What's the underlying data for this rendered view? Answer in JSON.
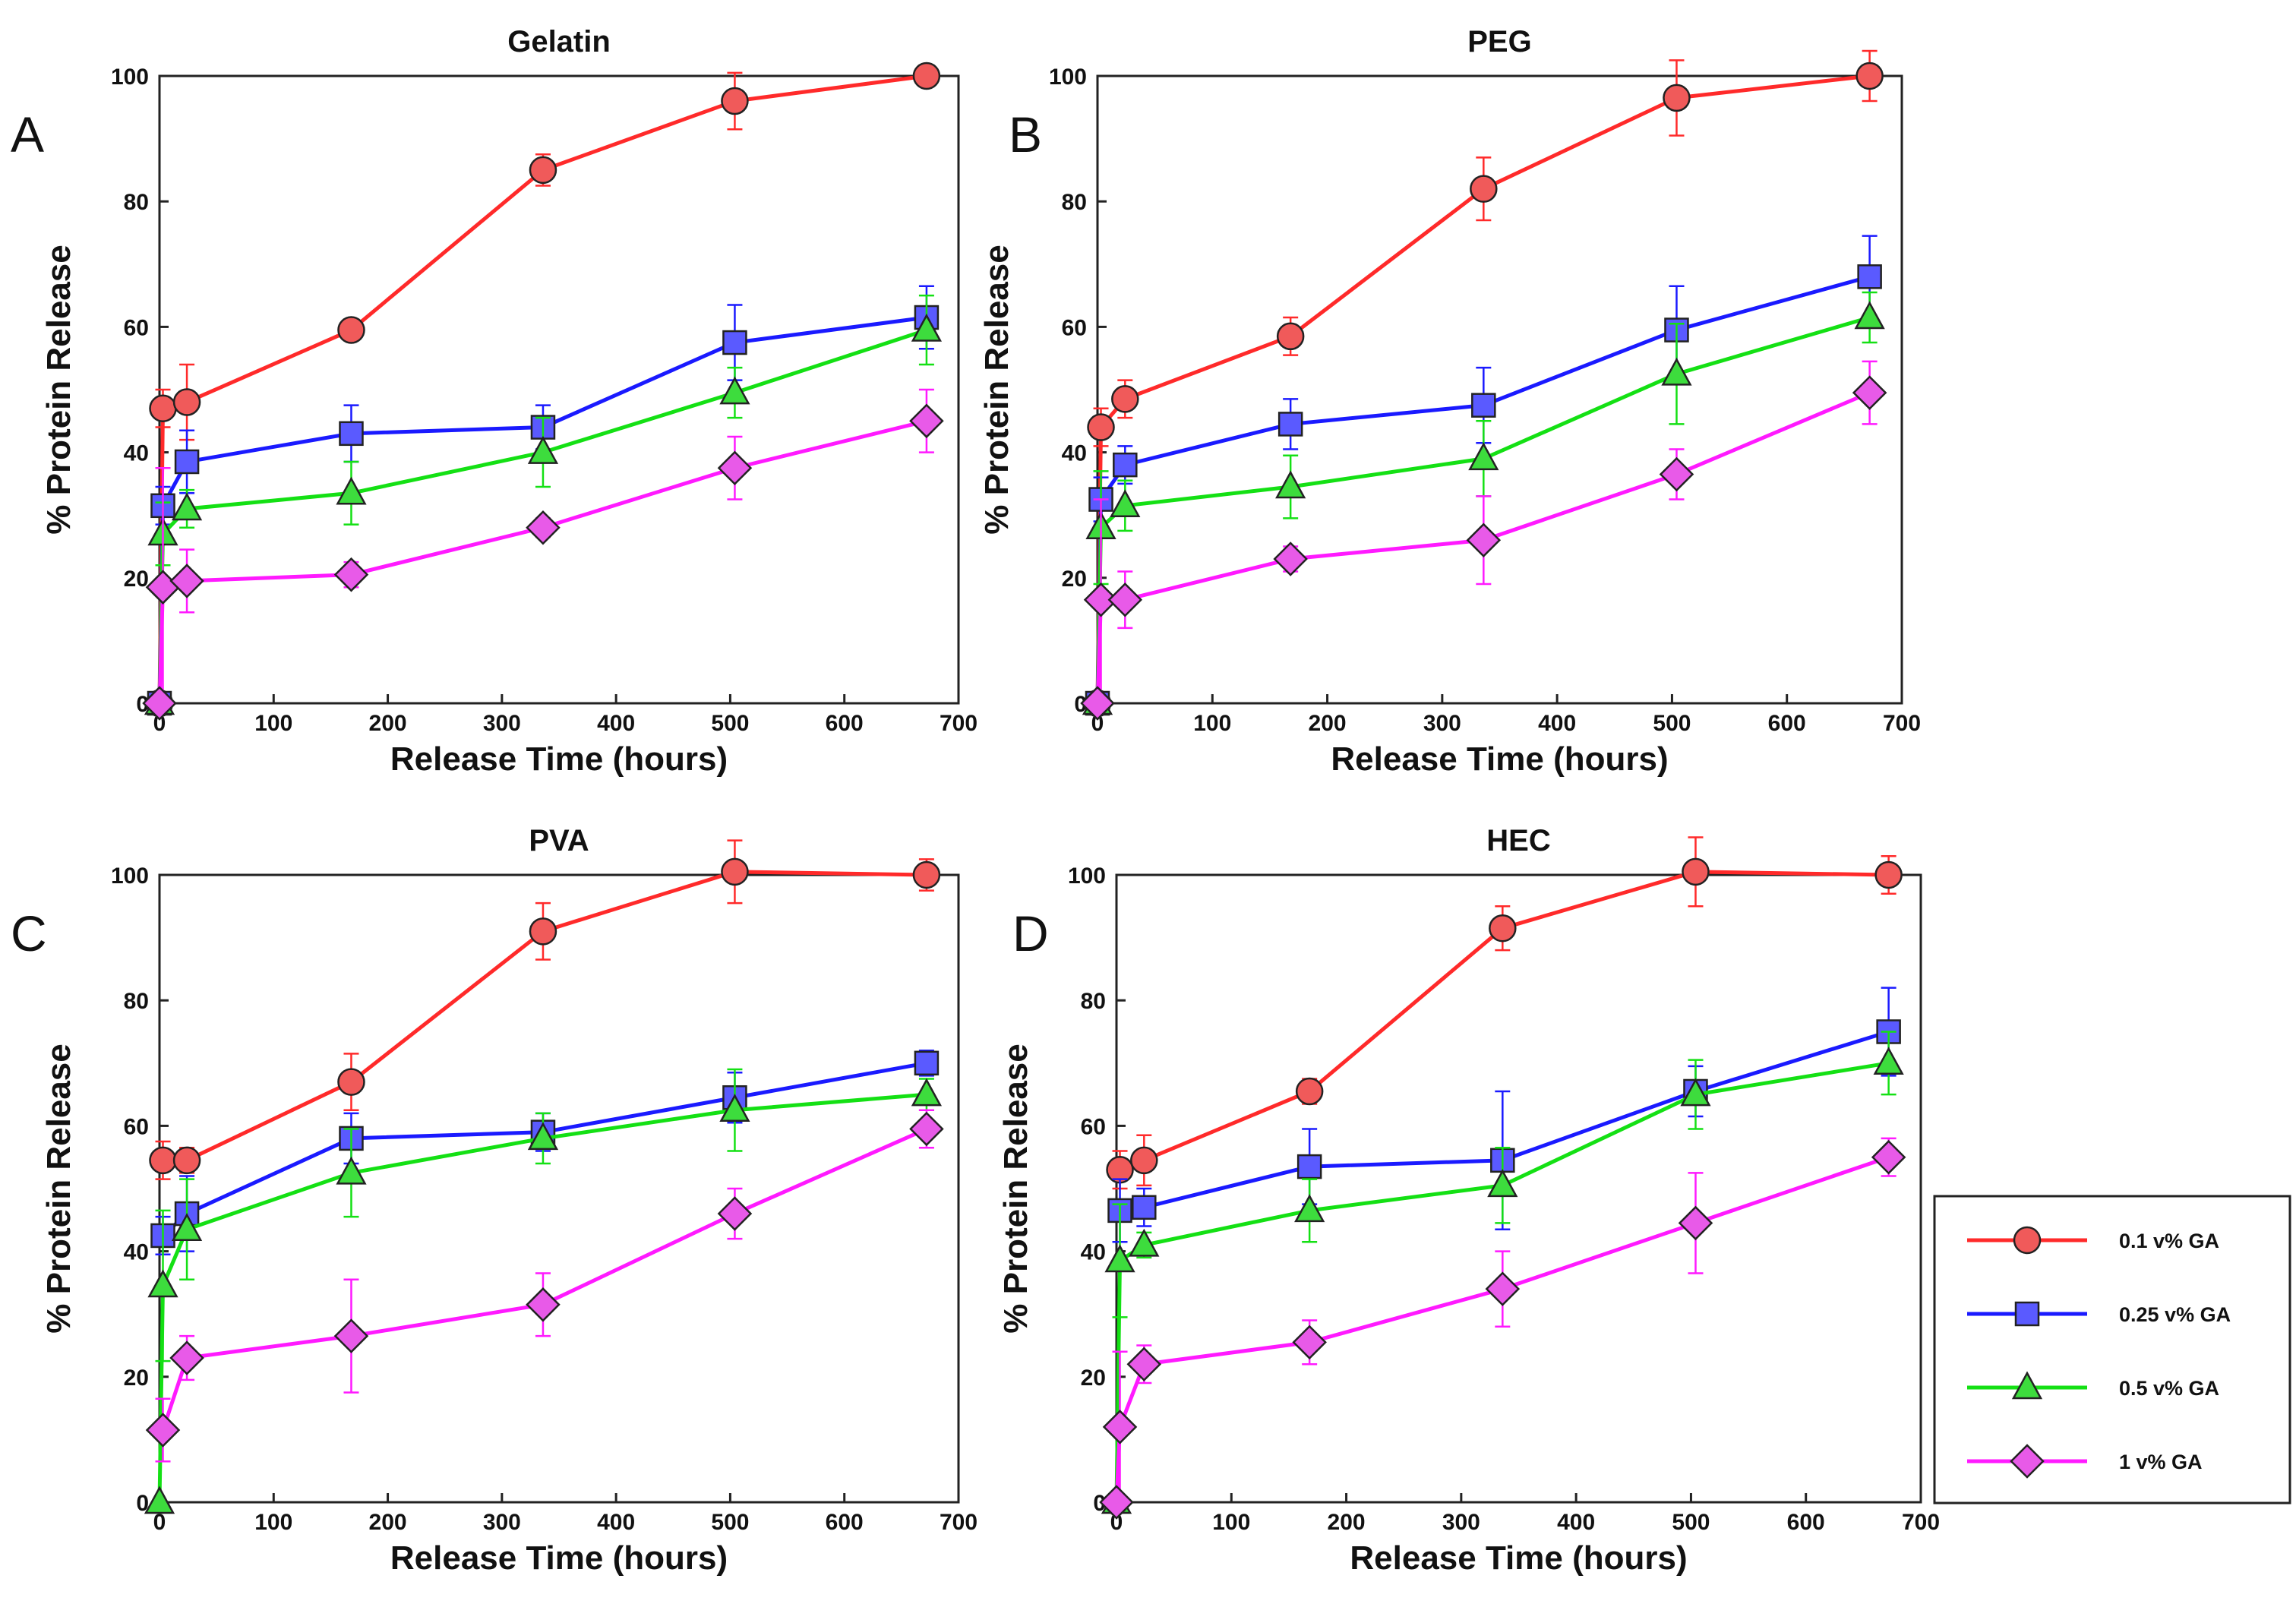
{
  "chart_data": [
    {
      "panel_label": "A",
      "type": "line",
      "title": "Gelatin",
      "xlabel": "Release Time (hours)",
      "ylabel": "% Protein Release",
      "xlim": [
        0,
        700
      ],
      "ylim": [
        0,
        100
      ],
      "xticks": [
        "0",
        "100",
        "200",
        "300",
        "400",
        "500",
        "600",
        "700"
      ],
      "yticks": [
        "0",
        "20",
        "40",
        "60",
        "80",
        "100"
      ],
      "series": [
        {
          "name": "0.1 v% GA",
          "x": [
            0,
            3,
            24,
            168,
            336,
            504,
            672
          ],
          "y": [
            0,
            47,
            48,
            59.5,
            85,
            96,
            100
          ],
          "err": [
            0,
            3,
            6,
            1.5,
            2.5,
            4.5,
            1
          ]
        },
        {
          "name": "0.25 v% GA",
          "x": [
            0,
            3,
            24,
            168,
            336,
            504,
            672
          ],
          "y": [
            0,
            31.5,
            38.5,
            43,
            44,
            57.5,
            61.5
          ],
          "err": [
            0,
            3,
            5,
            4.5,
            3.5,
            6,
            5
          ]
        },
        {
          "name": "0.5 v% GA",
          "x": [
            0,
            3,
            24,
            168,
            336,
            504,
            672
          ],
          "y": [
            0,
            27,
            31,
            33.5,
            40,
            49.5,
            59.5
          ],
          "err": [
            0,
            5,
            3,
            5,
            5.5,
            4,
            5.5
          ]
        },
        {
          "name": "1 v% GA",
          "x": [
            0,
            3,
            24,
            168,
            336,
            504,
            672
          ],
          "y": [
            0,
            18.5,
            19.5,
            20.5,
            28,
            37.5,
            45
          ],
          "err": [
            0,
            19,
            5,
            2,
            1.5,
            5,
            5
          ]
        }
      ]
    },
    {
      "panel_label": "B",
      "type": "line",
      "title": "PEG",
      "xlabel": "Release Time (hours)",
      "ylabel": "% Protein Release",
      "xlim": [
        0,
        700
      ],
      "ylim": [
        0,
        100
      ],
      "xticks": [
        "0",
        "100",
        "200",
        "300",
        "400",
        "500",
        "600",
        "700"
      ],
      "yticks": [
        "0",
        "20",
        "40",
        "60",
        "80",
        "100"
      ],
      "series": [
        {
          "name": "0.1 v% GA",
          "x": [
            0,
            3,
            24,
            168,
            336,
            504,
            672
          ],
          "y": [
            0,
            44,
            48.5,
            58.5,
            82,
            96.5,
            100
          ],
          "err": [
            0,
            3,
            3,
            3,
            5,
            6,
            4
          ]
        },
        {
          "name": "0.25 v% GA",
          "x": [
            0,
            3,
            24,
            168,
            336,
            504,
            672
          ],
          "y": [
            0,
            32.5,
            38,
            44.5,
            47.5,
            59.5,
            68
          ],
          "err": [
            0,
            3.5,
            3,
            4,
            6,
            7,
            6.5
          ]
        },
        {
          "name": "0.5 v% GA",
          "x": [
            0,
            3,
            24,
            168,
            336,
            504,
            672
          ],
          "y": [
            0,
            28,
            31.5,
            34.5,
            39,
            52.5,
            61.5
          ],
          "err": [
            0,
            9,
            4,
            5,
            6,
            8,
            4
          ]
        },
        {
          "name": "1 v% GA",
          "x": [
            0,
            3,
            24,
            168,
            336,
            504,
            672
          ],
          "y": [
            0,
            16.5,
            16.5,
            23,
            26,
            36.5,
            49.5
          ],
          "err": [
            0,
            16,
            4.5,
            2,
            7,
            4,
            5
          ]
        }
      ]
    },
    {
      "panel_label": "C",
      "type": "line",
      "title": "PVA",
      "xlabel": "Release Time (hours)",
      "ylabel": "% Protein Release",
      "xlim": [
        0,
        700
      ],
      "ylim": [
        0,
        100
      ],
      "xticks": [
        "0",
        "100",
        "200",
        "300",
        "400",
        "500",
        "600",
        "700"
      ],
      "yticks": [
        "0",
        "20",
        "40",
        "60",
        "80",
        "100"
      ],
      "series": [
        {
          "name": "0.1 v% GA",
          "x": [
            3,
            24,
            168,
            336,
            504,
            672
          ],
          "y": [
            54.5,
            54.5,
            67,
            91,
            100.5,
            100
          ],
          "err": [
            3,
            2,
            4.5,
            4.5,
            5,
            2.5
          ]
        },
        {
          "name": "0.25 v% GA",
          "x": [
            3,
            24,
            168,
            336,
            504,
            672
          ],
          "y": [
            42.5,
            46,
            58,
            59,
            64.5,
            70
          ],
          "err": [
            3,
            6,
            4,
            3,
            4,
            2
          ]
        },
        {
          "name": "0.5 v% GA",
          "x": [
            0,
            3,
            24,
            168,
            336,
            504,
            672
          ],
          "y": [
            0,
            34.5,
            43.5,
            52.5,
            58,
            62.5,
            65
          ],
          "err": [
            0,
            12,
            8,
            7,
            4,
            6.5,
            2.5
          ]
        },
        {
          "name": "1 v% GA",
          "x": [
            3,
            24,
            168,
            336,
            504,
            672
          ],
          "y": [
            11.5,
            23,
            26.5,
            31.5,
            46,
            59.5
          ],
          "err": [
            5,
            3.5,
            9,
            5,
            4,
            3
          ]
        }
      ]
    },
    {
      "panel_label": "D",
      "type": "line",
      "title": "HEC",
      "xlabel": "Release Time (hours)",
      "ylabel": "% Protein Release",
      "xlim": [
        0,
        700
      ],
      "ylim": [
        0,
        100
      ],
      "xticks": [
        "0",
        "100",
        "200",
        "300",
        "400",
        "500",
        "600",
        "700"
      ],
      "yticks": [
        "0",
        "20",
        "40",
        "60",
        "80",
        "100"
      ],
      "series": [
        {
          "name": "0.1 v% GA",
          "x": [
            3,
            24,
            168,
            336,
            504,
            672
          ],
          "y": [
            53,
            54.5,
            65.5,
            91.5,
            100.5,
            100
          ],
          "err": [
            3,
            4,
            2,
            3.5,
            5.5,
            3
          ]
        },
        {
          "name": "0.25 v% GA",
          "x": [
            3,
            24,
            168,
            336,
            504,
            672
          ],
          "y": [
            46.5,
            47,
            53.5,
            54.5,
            65.5,
            75
          ],
          "err": [
            5,
            3,
            6,
            11,
            4,
            7
          ]
        },
        {
          "name": "0.5 v% GA",
          "x": [
            0,
            3,
            24,
            168,
            336,
            504,
            672
          ],
          "y": [
            0,
            38.5,
            41,
            46.5,
            50.5,
            65,
            70
          ],
          "err": [
            0,
            9,
            2,
            5,
            6,
            5.5,
            5
          ]
        },
        {
          "name": "1 v% GA",
          "x": [
            0,
            3,
            24,
            168,
            336,
            504,
            672
          ],
          "y": [
            0,
            12,
            22,
            25.5,
            34,
            44.5,
            55
          ],
          "err": [
            0,
            12,
            3,
            3.5,
            6,
            8,
            3
          ]
        }
      ]
    }
  ],
  "legend": {
    "position": "right",
    "items": [
      {
        "label": "0.1 v% GA",
        "color": "#ff2a2a",
        "marker": "circle",
        "fill": "#f05a5a"
      },
      {
        "label": "0.25 v% GA",
        "color": "#1a1aff",
        "marker": "square",
        "fill": "#5a5aff"
      },
      {
        "label": "0.5 v% GA",
        "color": "#14e014",
        "marker": "triangle",
        "fill": "#3ddc3d"
      },
      {
        "label": "1 v% GA",
        "color": "#ff1aff",
        "marker": "diamond",
        "fill": "#e85ae8"
      }
    ]
  }
}
